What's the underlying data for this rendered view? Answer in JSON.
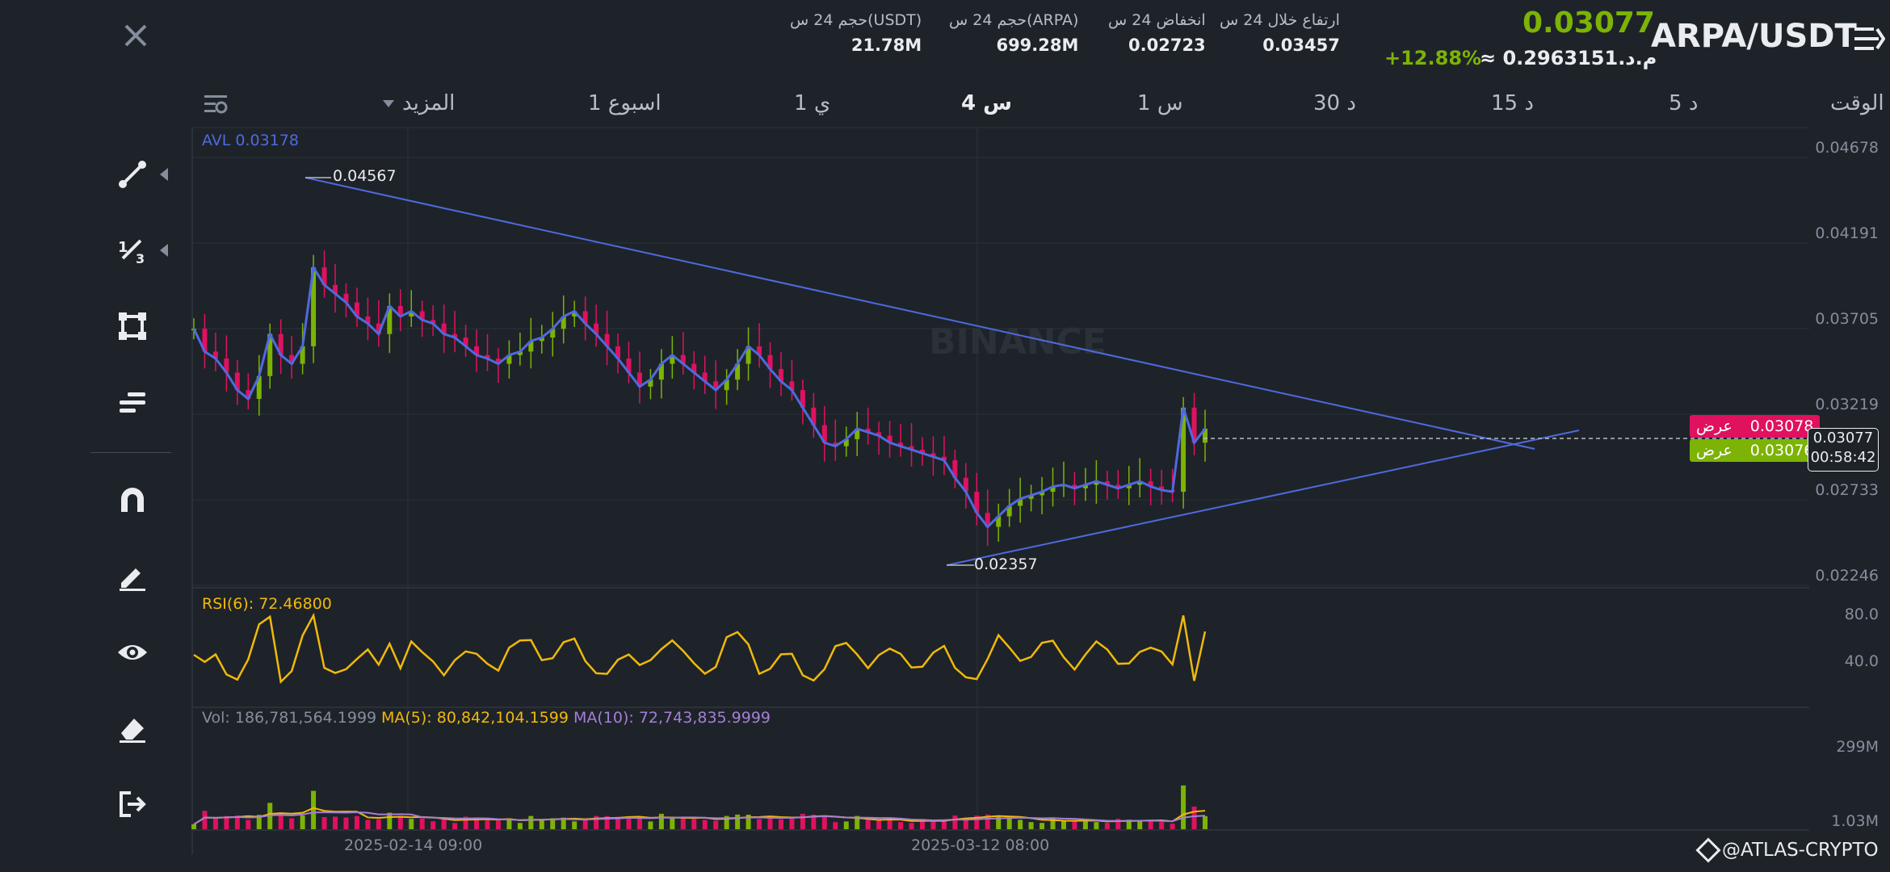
{
  "header": {
    "pair": "ARPA/USDT",
    "last_price": "0.03077",
    "fiat_value": "≈ م.د.0.2963151",
    "change_pct": "+12.88%",
    "stats": [
      {
        "label": "ارتفاع خلال 24 س",
        "value": "0.03457"
      },
      {
        "label": "انخفاض 24 س",
        "value": "0.02723"
      },
      {
        "label": "حجم 24 س(ARPA)",
        "value": "699.28M"
      },
      {
        "label": "حجم 24 س(USDT)",
        "value": "21.78M"
      }
    ],
    "close_icon": "close-icon",
    "menu_icon": "hamburger-menu-icon"
  },
  "timeframes": {
    "time": "الوقت",
    "m5": "5 د",
    "m15": "15 د",
    "m30": "30 د",
    "h1": "1 س",
    "h4": "4 س",
    "d1": "1 ي",
    "w1": "1 اسبوع",
    "more": "المزيد",
    "active": "4 س"
  },
  "tools": [
    {
      "name": "trend-line-icon"
    },
    {
      "name": "fibonacci-icon"
    },
    {
      "name": "shape-rect-icon"
    },
    {
      "name": "text-annotation-icon"
    },
    {
      "name": "magnet-icon"
    },
    {
      "name": "pencil-icon"
    },
    {
      "name": "eye-icon"
    },
    {
      "name": "eraser-icon"
    },
    {
      "name": "exit-icon"
    }
  ],
  "chart_data": {
    "type": "candlestick",
    "avl_label": "AVL 0.03178",
    "watermark": "BINANCE",
    "price_axis": [
      "0.04678",
      "0.04191",
      "0.03705",
      "0.03219",
      "0.02733",
      "0.02246"
    ],
    "ylim": [
      0.02246,
      0.04678
    ],
    "high_marker": "0.04567",
    "low_marker": "0.02357",
    "x_labels": [
      "2025-02-14 09:00",
      "2025-03-12 08:00"
    ],
    "ask_tag": {
      "label": "عرض",
      "price": "0.03078"
    },
    "bid_tag": {
      "label": "عرض",
      "price": "0.03076"
    },
    "current_price": "0.03077",
    "countdown": "00:58:42",
    "close_series": [
      0.0365,
      0.0352,
      0.0348,
      0.034,
      0.033,
      0.0325,
      0.0338,
      0.0362,
      0.035,
      0.0345,
      0.0355,
      0.04,
      0.039,
      0.0385,
      0.038,
      0.0372,
      0.0368,
      0.0362,
      0.0378,
      0.0372,
      0.0375,
      0.037,
      0.0368,
      0.0362,
      0.036,
      0.0355,
      0.035,
      0.0348,
      0.0345,
      0.035,
      0.0352,
      0.0358,
      0.036,
      0.0365,
      0.0372,
      0.0375,
      0.0368,
      0.0362,
      0.0355,
      0.0348,
      0.034,
      0.0332,
      0.0336,
      0.0345,
      0.035,
      0.0345,
      0.034,
      0.0335,
      0.033,
      0.0336,
      0.0345,
      0.0355,
      0.035,
      0.0342,
      0.0335,
      0.033,
      0.032,
      0.031,
      0.03,
      0.0298,
      0.0302,
      0.0308,
      0.0306,
      0.0304,
      0.03,
      0.0298,
      0.0296,
      0.0294,
      0.0292,
      0.029,
      0.028,
      0.0272,
      0.026,
      0.0252,
      0.0258,
      0.0264,
      0.0268,
      0.027,
      0.0272,
      0.0275,
      0.0276,
      0.0274,
      0.0276,
      0.0278,
      0.0276,
      0.0274,
      0.0276,
      0.0278,
      0.0275,
      0.0273,
      0.0272,
      0.032,
      0.03,
      0.0308
    ],
    "rsi": {
      "label": "RSI(6): 72.46800",
      "levels": [
        "80.0",
        "40.0"
      ]
    },
    "volume": {
      "vol_label": "Vol: 186,781,564.1999",
      "ma5_label": "MA(5): 80,842,104.1599",
      "ma10_label": "MA(10): 72,743,835.9999",
      "axis": [
        "299M",
        "1.03M"
      ]
    }
  },
  "colors": {
    "bg": "#1e2329",
    "up": "#7cb305",
    "down": "#e0115f",
    "line": "#4e6ae0",
    "rsi": "#f0b90b",
    "ma10": "#a47fd6"
  },
  "watermark_credit": "@ATLAS-CRYPTO"
}
